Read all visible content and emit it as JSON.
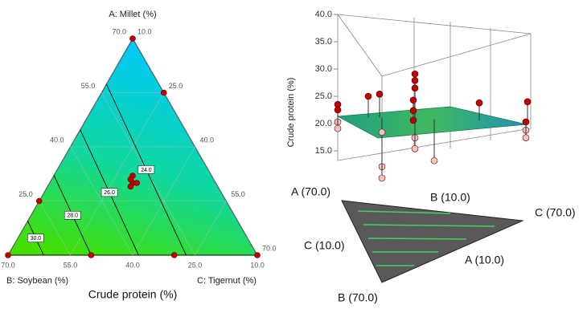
{
  "chart_data": [
    {
      "type": "ternary",
      "xlabel": "Crude protein (%)",
      "vertex_labels": [
        "A: Millet (%)",
        "B: Soybean (%)",
        "C: Tigernut (%)"
      ],
      "a_ticks": [
        {
          "value": 70,
          "label": "70.0"
        },
        {
          "value": 55,
          "label": "55.0"
        },
        {
          "value": 40,
          "label": "40.0"
        },
        {
          "value": 25,
          "label": "25.0"
        }
      ],
      "b_ticks": [
        {
          "value": 70,
          "label": "70.0"
        },
        {
          "value": 55,
          "label": "55.0"
        },
        {
          "value": 40,
          "label": "40.0"
        },
        {
          "value": 25,
          "label": "25.0"
        },
        {
          "value": 10,
          "label": "10.0"
        }
      ],
      "c_ticks": [
        {
          "value": 10,
          "label": "10.0"
        },
        {
          "value": 25,
          "label": "25.0"
        },
        {
          "value": 40,
          "label": "40.0"
        },
        {
          "value": 55,
          "label": "55.0"
        },
        {
          "value": 70,
          "label": "70.0"
        }
      ],
      "contours": [
        {
          "value": 24,
          "label": "24.0"
        },
        {
          "value": 26,
          "label": "26.0"
        },
        {
          "value": 28,
          "label": "28.0"
        },
        {
          "value": 30,
          "label": "30.0"
        }
      ],
      "color": "#c00000",
      "points": {
        "a": [
          70,
          10,
          10,
          55,
          25,
          10,
          10,
          30,
          32,
          29,
          31,
          30
        ],
        "b": [
          10,
          70,
          10,
          10,
          55,
          50,
          30,
          30,
          29,
          31,
          30,
          29
        ],
        "c": [
          10,
          10,
          70,
          25,
          10,
          30,
          50,
          30,
          29,
          30,
          29,
          31
        ]
      }
    },
    {
      "type": "surface3d",
      "zlabel": "Crude protein (%)",
      "zlim": [
        15,
        40
      ],
      "zticks": [
        {
          "value": 15,
          "label": "15.0"
        },
        {
          "value": 20,
          "label": "20.0"
        },
        {
          "value": 25,
          "label": "25.0"
        },
        {
          "value": 30,
          "label": "30.0"
        },
        {
          "value": 35,
          "label": "35.0"
        },
        {
          "value": 40,
          "label": "40.0"
        }
      ],
      "corner_labels": [
        "A (70.0)",
        "B (10.0)",
        "C (70.0)",
        "C (10.0)",
        "A (10.0)",
        "B (70.0)"
      ],
      "series": [
        {
          "color": "#c00000",
          "values": [
            23.5,
            22.5,
            25,
            25.4,
            29.1,
            27.9,
            26.5,
            24.3,
            22.4,
            20.6,
            23.8,
            24,
            20.3
          ]
        },
        {
          "color": "#f4c2c2",
          "values": [
            20.3,
            19.1,
            12.1,
            10,
            17.4,
            15.4,
            13.2,
            18.8,
            17.4,
            18.4
          ]
        }
      ]
    }
  ]
}
